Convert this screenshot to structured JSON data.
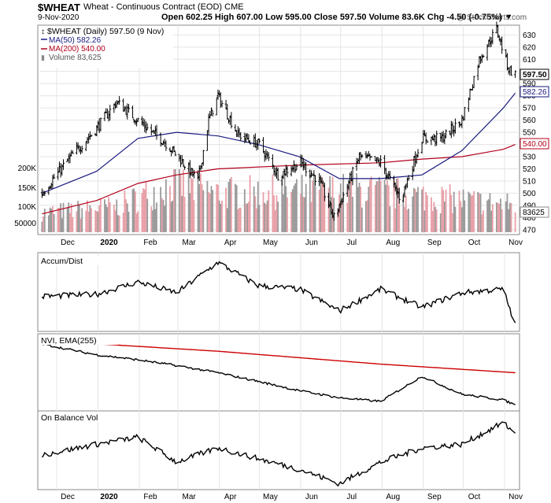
{
  "header": {
    "symbol": "$WHEAT",
    "description": "Wheat - Continuous Contract (EOD)",
    "exchange": "CME",
    "date": "9-Nov-2020",
    "ohlc_line": "Open 602.25  High 607.00  Low 595.00  Close 597.50  Volume 83.6K  Chg -4.50 (-0.75%) ▼",
    "copyright": "@ StockCharts.com"
  },
  "legend": {
    "main": "$WHEAT (Daily) 597.50 (9 Nov)",
    "ma50": "MA(50) 582.26",
    "ma200": "MA(200) 540.00",
    "volume": "Volume 83,625"
  },
  "price_badges": {
    "close": "597.50",
    "ma50": "582.26",
    "ma200": "540.00",
    "volume": "83625"
  },
  "colors": {
    "price": "#000000",
    "ma50": "#1a1a80",
    "ma200": "#b3001b",
    "ema": "#cc0000",
    "volume_up": "#9a9a9a",
    "volume_down": "#e8a0a8",
    "grid": "#e4e4e4"
  },
  "chart_data": [
    {
      "type": "ohlc",
      "title": "$WHEAT (Daily)",
      "x_labels": [
        "Dec",
        "2020",
        "Feb",
        "Mar",
        "Apr",
        "May",
        "Jun",
        "Jul",
        "Aug",
        "Sep",
        "Oct",
        "Nov"
      ],
      "y_ticks": [
        470,
        480,
        490,
        500,
        510,
        520,
        530,
        540,
        550,
        560,
        570,
        580,
        590,
        600,
        610,
        620,
        630
      ],
      "ylim": [
        466,
        638
      ],
      "grid": true,
      "close_keypoints": [
        {
          "x": "2019-11-20",
          "y": 500
        },
        {
          "x": "2019-12-10",
          "y": 528
        },
        {
          "x": "2019-12-30",
          "y": 552
        },
        {
          "x": "2020-01-15",
          "y": 575
        },
        {
          "x": "2020-02-05",
          "y": 555
        },
        {
          "x": "2020-02-20",
          "y": 542
        },
        {
          "x": "2020-03-05",
          "y": 525
        },
        {
          "x": "2020-03-16",
          "y": 510
        },
        {
          "x": "2020-03-24",
          "y": 560
        },
        {
          "x": "2020-03-31",
          "y": 580
        },
        {
          "x": "2020-04-15",
          "y": 548
        },
        {
          "x": "2020-05-01",
          "y": 540
        },
        {
          "x": "2020-05-15",
          "y": 515
        },
        {
          "x": "2020-06-01",
          "y": 525
        },
        {
          "x": "2020-06-15",
          "y": 510
        },
        {
          "x": "2020-06-26",
          "y": 480
        },
        {
          "x": "2020-07-15",
          "y": 530
        },
        {
          "x": "2020-07-31",
          "y": 525
        },
        {
          "x": "2020-08-15",
          "y": 495
        },
        {
          "x": "2020-08-31",
          "y": 545
        },
        {
          "x": "2020-09-15",
          "y": 545
        },
        {
          "x": "2020-09-30",
          "y": 560
        },
        {
          "x": "2020-10-13",
          "y": 610
        },
        {
          "x": "2020-10-26",
          "y": 635
        },
        {
          "x": "2020-11-04",
          "y": 602
        },
        {
          "x": "2020-11-09",
          "y": 597.5
        }
      ],
      "series": [
        {
          "name": "MA(50)",
          "points": [
            {
              "x": "2019-11-20",
              "y": 500
            },
            {
              "x": "2019-12-31",
              "y": 518
            },
            {
              "x": "2020-01-31",
              "y": 545
            },
            {
              "x": "2020-02-29",
              "y": 550
            },
            {
              "x": "2020-03-31",
              "y": 547
            },
            {
              "x": "2020-04-30",
              "y": 540
            },
            {
              "x": "2020-05-31",
              "y": 530
            },
            {
              "x": "2020-06-30",
              "y": 512
            },
            {
              "x": "2020-07-31",
              "y": 512
            },
            {
              "x": "2020-08-31",
              "y": 515
            },
            {
              "x": "2020-09-30",
              "y": 535
            },
            {
              "x": "2020-10-31",
              "y": 570
            },
            {
              "x": "2020-11-09",
              "y": 582.26
            }
          ]
        },
        {
          "name": "MA(200)",
          "points": [
            {
              "x": "2019-11-20",
              "y": 483
            },
            {
              "x": "2019-12-31",
              "y": 494
            },
            {
              "x": "2020-01-31",
              "y": 508
            },
            {
              "x": "2020-02-29",
              "y": 515
            },
            {
              "x": "2020-03-31",
              "y": 520
            },
            {
              "x": "2020-05-31",
              "y": 523
            },
            {
              "x": "2020-07-31",
              "y": 525
            },
            {
              "x": "2020-08-31",
              "y": 528
            },
            {
              "x": "2020-09-30",
              "y": 530
            },
            {
              "x": "2020-10-31",
              "y": 536
            },
            {
              "x": "2020-11-09",
              "y": 540
            }
          ]
        }
      ],
      "volume_ticks": [
        "50000",
        "100K",
        "150K",
        "200K"
      ],
      "volume_keypoints": [
        {
          "x": "2019-11-20",
          "y": 60000
        },
        {
          "x": "2020-01-15",
          "y": 80000
        },
        {
          "x": "2020-02-28",
          "y": 150000
        },
        {
          "x": "2020-03-31",
          "y": 120000
        },
        {
          "x": "2020-07-15",
          "y": 130000
        },
        {
          "x": "2020-11-09",
          "y": 83625
        }
      ]
    },
    {
      "type": "line",
      "title": "Accum/Dist",
      "grid": true,
      "series": [
        {
          "name": "Accum/Dist",
          "points": [
            {
              "x": "2019-11-20",
              "y": 0.45
            },
            {
              "x": "2019-12-31",
              "y": 0.48
            },
            {
              "x": "2020-01-31",
              "y": 0.65
            },
            {
              "x": "2020-02-29",
              "y": 0.5
            },
            {
              "x": "2020-03-31",
              "y": 0.92
            },
            {
              "x": "2020-04-30",
              "y": 0.6
            },
            {
              "x": "2020-05-31",
              "y": 0.55
            },
            {
              "x": "2020-06-30",
              "y": 0.25
            },
            {
              "x": "2020-07-31",
              "y": 0.55
            },
            {
              "x": "2020-08-31",
              "y": 0.3
            },
            {
              "x": "2020-09-30",
              "y": 0.5
            },
            {
              "x": "2020-10-31",
              "y": 0.55
            },
            {
              "x": "2020-11-09",
              "y": 0.05
            }
          ]
        }
      ]
    },
    {
      "type": "line",
      "title": "NVI, EMA(255)",
      "grid": true,
      "series": [
        {
          "name": "NVI",
          "points": [
            {
              "x": "2019-11-20",
              "y": 0.9
            },
            {
              "x": "2019-12-31",
              "y": 0.75
            },
            {
              "x": "2020-01-31",
              "y": 0.68
            },
            {
              "x": "2020-02-29",
              "y": 0.6
            },
            {
              "x": "2020-03-31",
              "y": 0.5
            },
            {
              "x": "2020-04-30",
              "y": 0.38
            },
            {
              "x": "2020-05-31",
              "y": 0.25
            },
            {
              "x": "2020-06-30",
              "y": 0.15
            },
            {
              "x": "2020-07-31",
              "y": 0.1
            },
            {
              "x": "2020-08-31",
              "y": 0.45
            },
            {
              "x": "2020-09-30",
              "y": 0.2
            },
            {
              "x": "2020-10-31",
              "y": 0.12
            },
            {
              "x": "2020-11-09",
              "y": 0.05
            }
          ]
        },
        {
          "name": "EMA(255)",
          "points": [
            {
              "x": "2019-11-20",
              "y": 0.95
            },
            {
              "x": "2020-03-31",
              "y": 0.8
            },
            {
              "x": "2020-07-31",
              "y": 0.62
            },
            {
              "x": "2020-11-09",
              "y": 0.5
            }
          ]
        }
      ]
    },
    {
      "type": "line",
      "title": "On Balance Vol",
      "grid": true,
      "series": [
        {
          "name": "On Balance Vol",
          "points": [
            {
              "x": "2019-11-20",
              "y": 0.45
            },
            {
              "x": "2019-12-31",
              "y": 0.6
            },
            {
              "x": "2020-01-31",
              "y": 0.7
            },
            {
              "x": "2020-02-29",
              "y": 0.35
            },
            {
              "x": "2020-03-31",
              "y": 0.55
            },
            {
              "x": "2020-04-30",
              "y": 0.4
            },
            {
              "x": "2020-05-31",
              "y": 0.25
            },
            {
              "x": "2020-06-30",
              "y": 0.05
            },
            {
              "x": "2020-07-31",
              "y": 0.35
            },
            {
              "x": "2020-08-31",
              "y": 0.55
            },
            {
              "x": "2020-09-30",
              "y": 0.6
            },
            {
              "x": "2020-10-31",
              "y": 0.9
            },
            {
              "x": "2020-11-09",
              "y": 0.75
            }
          ]
        }
      ]
    }
  ]
}
